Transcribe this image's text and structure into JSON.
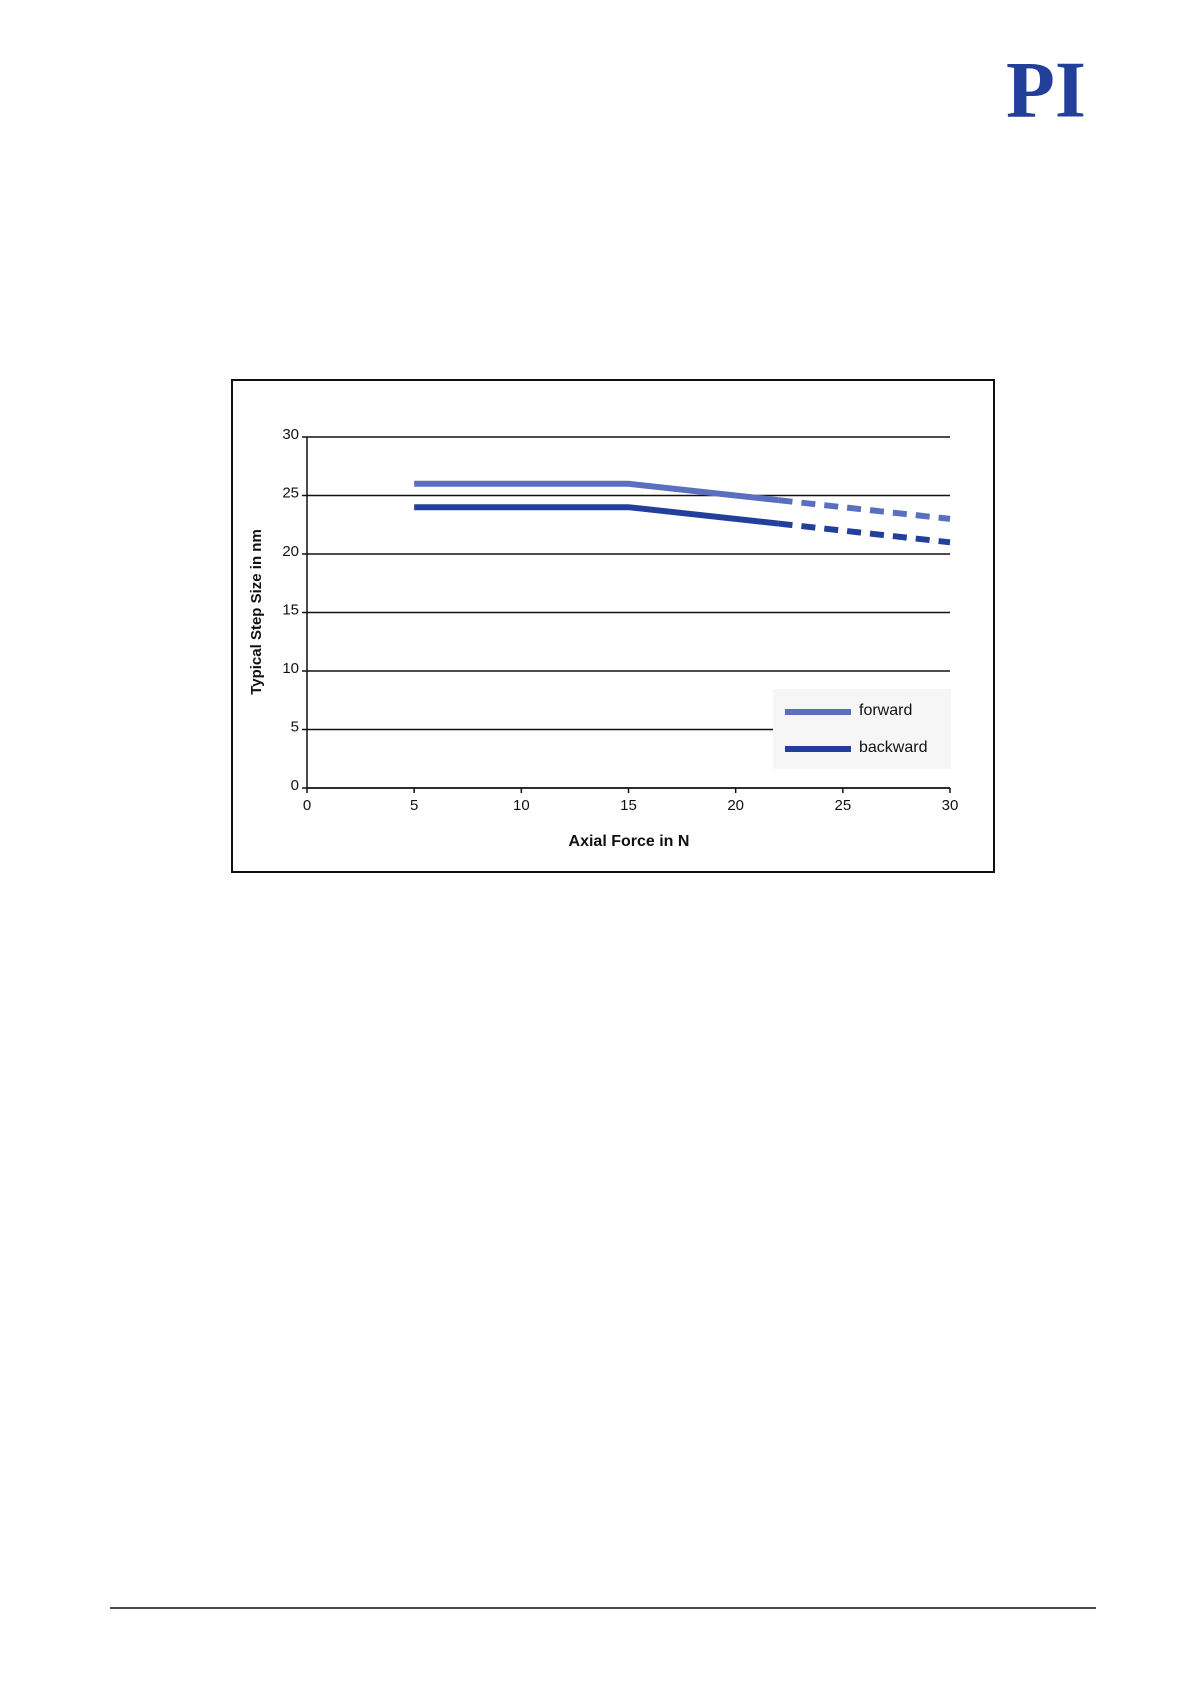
{
  "header": {
    "logo": "PI"
  },
  "chart_data": {
    "type": "line",
    "x_label": "Axial Force in N",
    "y_label": "Typical Step Size in nm",
    "xlim": [
      0,
      30
    ],
    "xticks": [
      0,
      5,
      10,
      15,
      20,
      25,
      30
    ],
    "ylim": [
      0,
      30
    ],
    "yticks": [
      0,
      5,
      10,
      15,
      20,
      25,
      30
    ],
    "grid": true,
    "legend": "lower right",
    "dashed_from_x": 22,
    "x": [
      5,
      15,
      22,
      30
    ],
    "series": [
      {
        "name": "forward",
        "color": "#5b6fc0",
        "values": [
          26,
          26,
          24.6,
          23
        ]
      },
      {
        "name": "backward",
        "color": "#22409a",
        "values": [
          24,
          24,
          22.6,
          21
        ]
      }
    ]
  }
}
